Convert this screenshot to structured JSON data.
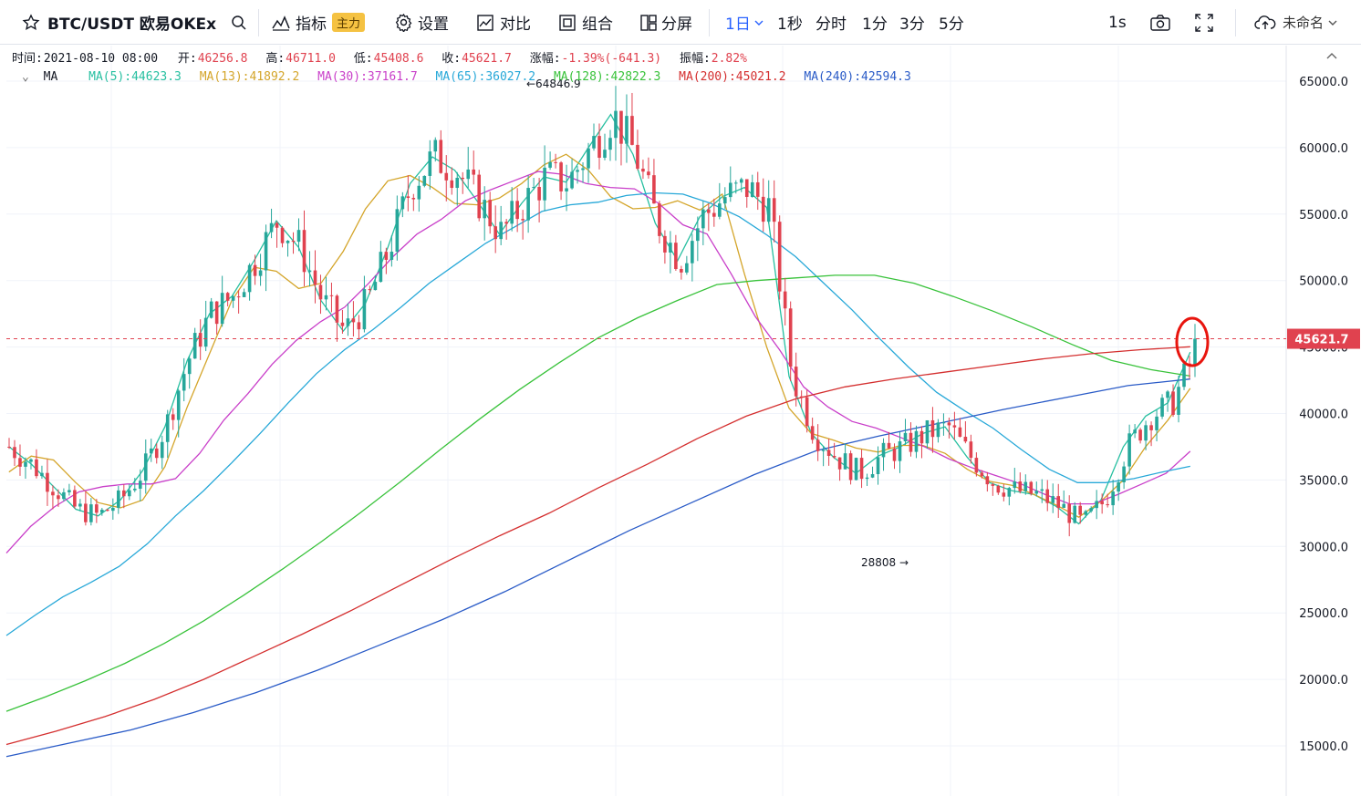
{
  "toolbar": {
    "symbol": "BTC/USDT 欧易OKEx",
    "indicators_label": "指标",
    "indicators_badge": "主力",
    "settings_label": "设置",
    "compare_label": "对比",
    "combine_label": "组合",
    "split_label": "分屏",
    "interval_selected": "1日",
    "intervals": [
      "1秒",
      "分时",
      "1分",
      "3分",
      "5分"
    ],
    "replay_speed": "1s",
    "layout_name": "未命名"
  },
  "ohlc": {
    "time_label": "时间:",
    "time": "2021-08-10 08:00",
    "open_label": "开:",
    "open": "46256.8",
    "high_label": "高:",
    "high": "46711.0",
    "low_label": "低:",
    "low": "45408.6",
    "close_label": "收:",
    "close": "45621.7",
    "change_label": "涨幅:",
    "change": "-1.39%(-641.3)",
    "amplitude_label": "振幅:",
    "amplitude": "2.82%"
  },
  "ma_legend": {
    "label": "MA",
    "items": [
      {
        "text": "MA(5):44623.3",
        "color": "#26bfa0"
      },
      {
        "text": "MA(13):41892.2",
        "color": "#d4a52a"
      },
      {
        "text": "MA(30):37161.7",
        "color": "#c93fc9"
      },
      {
        "text": "MA(65):36027.2",
        "color": "#27a8d8"
      },
      {
        "text": "MA(128):42822.3",
        "color": "#38c23a"
      },
      {
        "text": "MA(200):45021.2",
        "color": "#d42f2f"
      },
      {
        "text": "MA(240):42594.3",
        "color": "#2a5bc7"
      }
    ]
  },
  "annotations": {
    "max_label": "←64846.9",
    "min_label": "28808 →",
    "last_price": "45621.7"
  },
  "colors": {
    "up": "#26a69a",
    "down": "#e0424f",
    "price_line": "#e0424f",
    "grid": "#f0f3fa"
  },
  "chart_data": {
    "type": "candlestick",
    "ylim": [
      12000,
      67000
    ],
    "yticks": [
      "65000.0",
      "60000.0",
      "55000.0",
      "50000.0",
      "45000.0",
      "40000.0",
      "35000.0",
      "30000.0",
      "25000.0",
      "20000.0",
      "15000.0"
    ],
    "ytick_values": [
      65000,
      60000,
      55000,
      50000,
      45000,
      40000,
      35000,
      30000,
      25000,
      20000,
      15000
    ],
    "series": [
      {
        "name": "MA(5)",
        "color": "#26bfa0",
        "values": [
          37500,
          36200,
          34500,
          32800,
          32300,
          33500,
          35700,
          39000,
          44000,
          47500,
          48800,
          51500,
          54500,
          52500,
          48500,
          46200,
          48300,
          52500,
          57300,
          59300,
          58300,
          56000,
          53500,
          55800,
          57800,
          57400,
          60000,
          62500,
          59500,
          54300,
          51500,
          54800,
          56300,
          57000,
          55500,
          42800,
          38500,
          36700,
          35500,
          36800,
          37500,
          38500,
          39000,
          36700,
          34800,
          34200,
          33900,
          33000,
          31700,
          33500,
          37500,
          39800,
          40800,
          44623
        ]
      },
      {
        "name": "MA(13)",
        "color": "#d4a52a",
        "values": [
          35600,
          36800,
          36500,
          34800,
          33300,
          32900,
          33500,
          36000,
          40500,
          44500,
          48500,
          51000,
          50700,
          49400,
          49800,
          52200,
          55400,
          57500,
          57900,
          57000,
          55800,
          55700,
          56200,
          57300,
          58700,
          59500,
          58300,
          56300,
          55400,
          55500,
          56000,
          55300,
          56500,
          50500,
          45000,
          40400,
          38500,
          38000,
          37400,
          37100,
          37600,
          37600,
          37000,
          35800,
          34900,
          34600,
          33900,
          33100,
          32200,
          33400,
          35000,
          37500,
          39500,
          41892
        ]
      },
      {
        "name": "MA(30)",
        "color": "#c93fc9",
        "values": [
          29500,
          31500,
          33000,
          34100,
          34500,
          34700,
          34700,
          35100,
          37000,
          39500,
          41500,
          43700,
          45500,
          46900,
          48000,
          49800,
          51800,
          53500,
          54600,
          56000,
          56800,
          57500,
          58200,
          58000,
          57300,
          57000,
          56900,
          55800,
          54200,
          53500,
          50500,
          47300,
          44800,
          42000,
          40500,
          39400,
          38900,
          38200,
          37500,
          36600,
          35900,
          35300,
          34700,
          33900,
          33200,
          33200,
          33900,
          34700,
          35500,
          37161
        ]
      },
      {
        "name": "MA(65)",
        "color": "#27a8d8",
        "values": [
          23300,
          24800,
          26200,
          27300,
          28500,
          30200,
          32300,
          34200,
          36300,
          38500,
          40800,
          43000,
          44800,
          46300,
          48000,
          49800,
          51300,
          52800,
          54000,
          55200,
          55700,
          55900,
          56400,
          56600,
          56500,
          55800,
          54800,
          53400,
          51800,
          49800,
          47800,
          45600,
          43500,
          41600,
          40200,
          38900,
          37300,
          35800,
          34800,
          34800,
          35100,
          35600,
          36027
        ]
      },
      {
        "name": "MA(128)",
        "color": "#38c23a",
        "values": [
          17600,
          18700,
          19900,
          21200,
          22700,
          24400,
          26300,
          28300,
          30400,
          32600,
          34900,
          37300,
          39600,
          41800,
          43800,
          45700,
          47200,
          48500,
          49700,
          50000,
          50200,
          50400,
          50400,
          49800,
          48800,
          47700,
          46500,
          45200,
          44000,
          43300,
          42822
        ]
      },
      {
        "name": "MA(200)",
        "color": "#d42f2f",
        "values": [
          15100,
          16100,
          17200,
          18500,
          20000,
          21700,
          23400,
          25200,
          27100,
          29000,
          30800,
          32500,
          34400,
          36200,
          38100,
          39800,
          41100,
          42000,
          42600,
          43100,
          43600,
          44100,
          44500,
          44800,
          45021
        ]
      },
      {
        "name": "MA(240)",
        "color": "#2a5bc7",
        "values": [
          14200,
          15200,
          16200,
          17500,
          19000,
          20700,
          22600,
          24500,
          26600,
          28900,
          31200,
          33300,
          35400,
          37200,
          38300,
          39300,
          40300,
          41200,
          42100,
          42594
        ]
      }
    ]
  }
}
